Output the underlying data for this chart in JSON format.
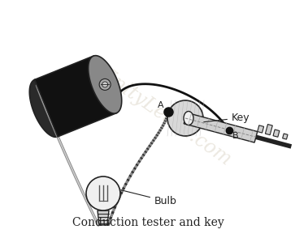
{
  "title": "Conduction tester and key",
  "title_fontsize": 10,
  "bg_color": "#ffffff",
  "label_bulb": "Bulb",
  "label_key": "Key",
  "label_A": "A",
  "label_B": "B",
  "watermark": "infinityLearn.com",
  "watermark_color": "#c8bfa8",
  "watermark_alpha": 0.35,
  "line_color": "#222222"
}
